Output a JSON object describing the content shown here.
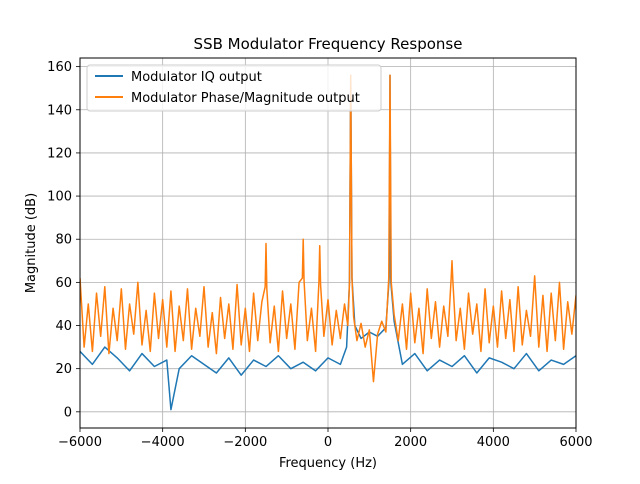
{
  "chart_data": {
    "type": "line",
    "title": "SSB Modulator Frequency Response",
    "xlabel": "Frequency (Hz)",
    "ylabel": "Magnitude (dB)",
    "xlim": [
      -6000,
      6000
    ],
    "ylim": [
      -7.5,
      164
    ],
    "grid": true,
    "legend_position": "top-left",
    "xticks": [
      -6000,
      -4000,
      -2000,
      0,
      2000,
      4000,
      6000
    ],
    "xtick_labels": [
      "−6000",
      "−4000",
      "−2000",
      "0",
      "2000",
      "4000",
      "6000"
    ],
    "yticks": [
      0,
      20,
      40,
      60,
      80,
      100,
      120,
      140,
      160
    ],
    "ytick_labels": [
      "0",
      "20",
      "40",
      "60",
      "80",
      "100",
      "120",
      "140",
      "160"
    ],
    "series": [
      {
        "name": "Modulator IQ output",
        "color": "#1f77b4",
        "x": [
          -6000,
          -5700,
          -5400,
          -5100,
          -4800,
          -4500,
          -4200,
          -3900,
          -3800,
          -3600,
          -3300,
          -3000,
          -2700,
          -2400,
          -2100,
          -1800,
          -1500,
          -1200,
          -900,
          -600,
          -300,
          0,
          300,
          450,
          520,
          550,
          580,
          650,
          800,
          1000,
          1200,
          1400,
          1480,
          1500,
          1520,
          1600,
          1800,
          2100,
          2400,
          2700,
          3000,
          3300,
          3600,
          3900,
          4200,
          4500,
          4800,
          5100,
          5400,
          5700,
          6000
        ],
        "y": [
          28,
          22,
          30,
          25,
          19,
          27,
          21,
          24,
          1,
          20,
          26,
          22,
          18,
          25,
          17,
          24,
          21,
          26,
          20,
          23,
          19,
          25,
          22,
          30,
          60,
          156,
          62,
          40,
          34,
          37,
          35,
          39,
          62,
          156,
          60,
          42,
          22,
          27,
          19,
          24,
          21,
          26,
          18,
          25,
          23,
          20,
          27,
          19,
          24,
          22,
          26
        ]
      },
      {
        "name": "Modulator Phase/Magnitude output",
        "color": "#ff7f0e",
        "x": [
          -6000,
          -5900,
          -5800,
          -5700,
          -5600,
          -5500,
          -5400,
          -5300,
          -5200,
          -5100,
          -5000,
          -4900,
          -4800,
          -4700,
          -4600,
          -4500,
          -4400,
          -4300,
          -4200,
          -4100,
          -4000,
          -3900,
          -3800,
          -3700,
          -3600,
          -3500,
          -3400,
          -3300,
          -3200,
          -3100,
          -3000,
          -2900,
          -2800,
          -2700,
          -2600,
          -2500,
          -2400,
          -2300,
          -2200,
          -2100,
          -2000,
          -1900,
          -1800,
          -1700,
          -1600,
          -1520,
          -1500,
          -1480,
          -1400,
          -1300,
          -1200,
          -1100,
          -1000,
          -900,
          -800,
          -700,
          -620,
          -600,
          -580,
          -500,
          -400,
          -300,
          -220,
          -200,
          -180,
          -100,
          0,
          100,
          200,
          300,
          400,
          480,
          520,
          550,
          580,
          620,
          700,
          800,
          900,
          1000,
          1100,
          1200,
          1300,
          1400,
          1470,
          1500,
          1530,
          1600,
          1700,
          1800,
          1900,
          2000,
          2100,
          2200,
          2300,
          2400,
          2500,
          2600,
          2700,
          2800,
          2900,
          2980,
          3000,
          3020,
          3100,
          3200,
          3300,
          3400,
          3500,
          3600,
          3700,
          3800,
          3900,
          4000,
          4100,
          4200,
          4300,
          4400,
          4500,
          4600,
          4700,
          4800,
          4900,
          5000,
          5100,
          5200,
          5300,
          5400,
          5500,
          5600,
          5700,
          5800,
          5900,
          6000
        ],
        "y": [
          62,
          30,
          50,
          28,
          55,
          35,
          58,
          27,
          48,
          33,
          57,
          29,
          50,
          36,
          60,
          31,
          47,
          28,
          55,
          34,
          52,
          30,
          56,
          28,
          49,
          33,
          57,
          29,
          48,
          35,
          58,
          30,
          46,
          27,
          53,
          34,
          50,
          29,
          59,
          31,
          48,
          28,
          55,
          33,
          51,
          58,
          78,
          57,
          32,
          49,
          28,
          56,
          34,
          50,
          29,
          60,
          62,
          80,
          61,
          33,
          48,
          28,
          60,
          77,
          59,
          35,
          52,
          31,
          47,
          34,
          50,
          40,
          60,
          156,
          62,
          44,
          33,
          41,
          30,
          38,
          14,
          36,
          42,
          37,
          62,
          156,
          60,
          45,
          33,
          50,
          29,
          55,
          32,
          48,
          27,
          57,
          34,
          51,
          30,
          49,
          35,
          62,
          70,
          61,
          33,
          48,
          29,
          55,
          36,
          50,
          28,
          57,
          32,
          49,
          30,
          56,
          34,
          52,
          28,
          58,
          31,
          47,
          35,
          63,
          30,
          54,
          28,
          55,
          33,
          60,
          29,
          51,
          36,
          54
        ]
      }
    ]
  }
}
